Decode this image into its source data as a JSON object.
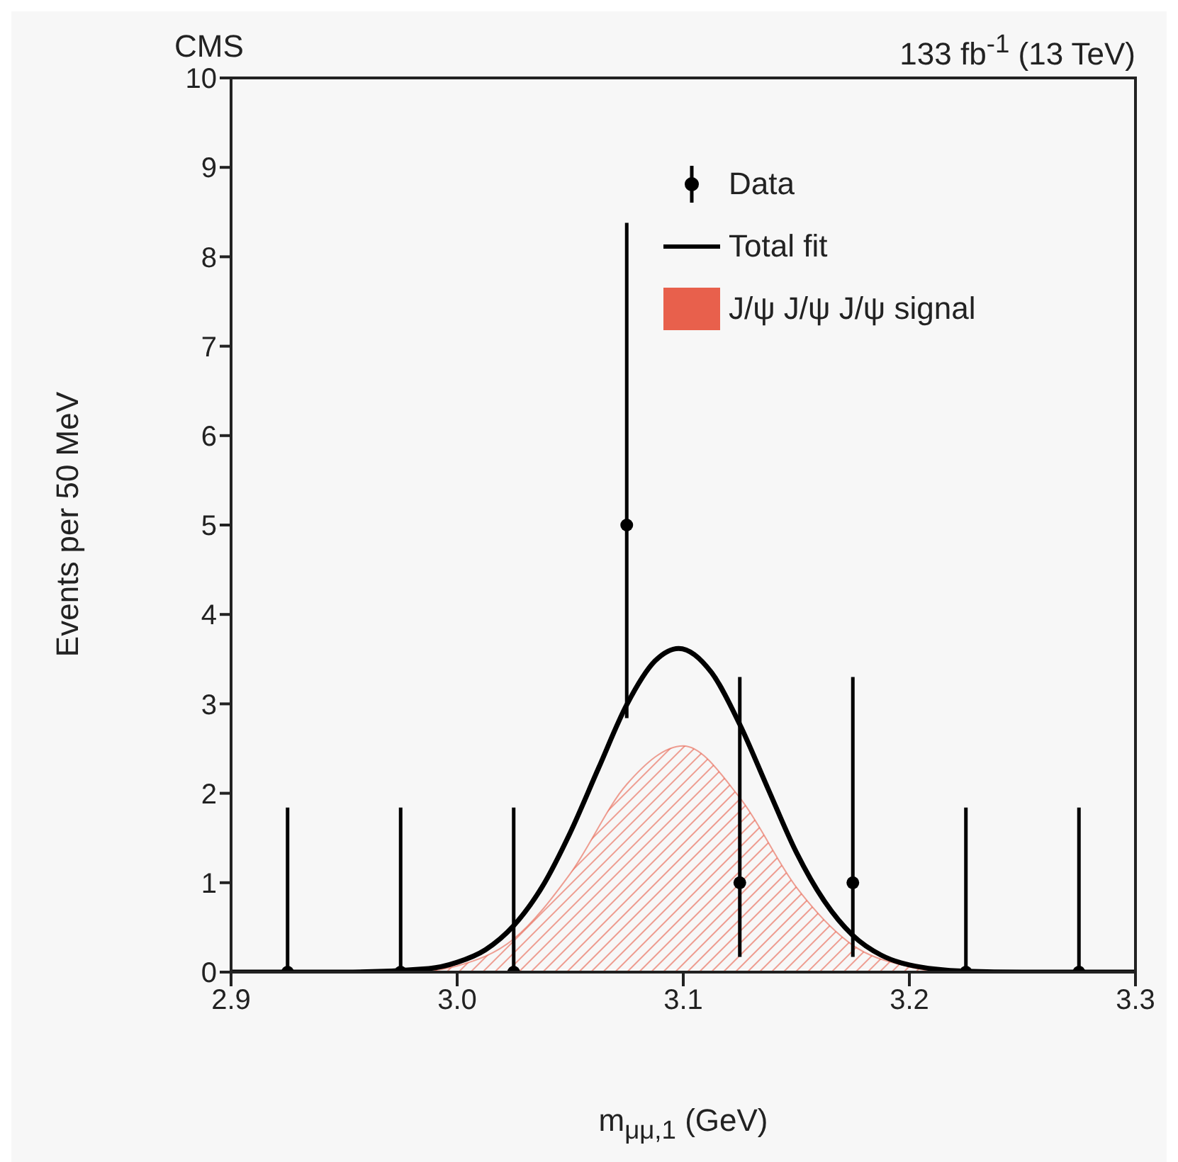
{
  "chart_data": {
    "type": "scatter",
    "title": "CMS",
    "subtitle": "133 fb$^{-1}$ (13 TeV)",
    "xlabel": "m$_{μμ,1}$ (GeV)",
    "ylabel": "Events per 50 MeV",
    "xlim": [
      2.9,
      3.3
    ],
    "xticks": [
      2.9,
      {
        "value": 3,
        "label": "3.0"
      },
      3.1,
      3.2,
      3.3
    ],
    "ylim": [
      0,
      10
    ],
    "yticks": [
      0,
      1,
      2,
      3,
      4,
      5,
      6,
      7,
      8,
      9,
      10
    ],
    "legend": "top right",
    "series": [
      {
        "name": "Data",
        "type": "scatter",
        "color": "#000000",
        "marker": "circle",
        "x": [
          2.925,
          2.975,
          3.025,
          3.075,
          3.125,
          3.175,
          3.225,
          3.275
        ],
        "values": [
          0,
          0,
          0,
          5,
          1,
          1,
          0,
          0
        ],
        "errors": [
          [
            0,
            1.84
          ],
          [
            0,
            1.84
          ],
          [
            0,
            1.84
          ],
          [
            2.84,
            8.38
          ],
          [
            0.17,
            3.3
          ],
          [
            0.17,
            3.3
          ],
          [
            0,
            1.84
          ],
          [
            0,
            1.84
          ]
        ]
      },
      {
        "name": "Total fit",
        "type": "line",
        "color": "#000000",
        "x": [
          2.9,
          2.95,
          2.9875,
          3.0,
          3.0125,
          3.025,
          3.0375,
          3.05,
          3.0625,
          3.075,
          3.0875,
          3.098,
          3.1125,
          3.125,
          3.1375,
          3.15,
          3.1625,
          3.175,
          3.1875,
          3.2,
          3.225,
          3.25,
          3.3
        ],
        "values": [
          0,
          0,
          0.04,
          0.11,
          0.25,
          0.52,
          0.95,
          1.56,
          2.28,
          2.99,
          3.48,
          3.62,
          3.35,
          2.77,
          2.05,
          1.34,
          0.79,
          0.41,
          0.19,
          0.08,
          0.01,
          0,
          0
        ]
      },
      {
        "name": "J/ψ J/ψ J/ψ signal",
        "type": "area",
        "color": "#e8604c",
        "x": [
          2.98,
          3.0,
          3.025,
          3.05,
          3.075,
          3.1,
          3.125,
          3.15,
          3.175,
          3.2,
          3.212
        ],
        "values": [
          0,
          0.07,
          0.37,
          1.1,
          2.1,
          2.53,
          1.95,
          0.95,
          0.3,
          0.06,
          0
        ]
      }
    ]
  }
}
